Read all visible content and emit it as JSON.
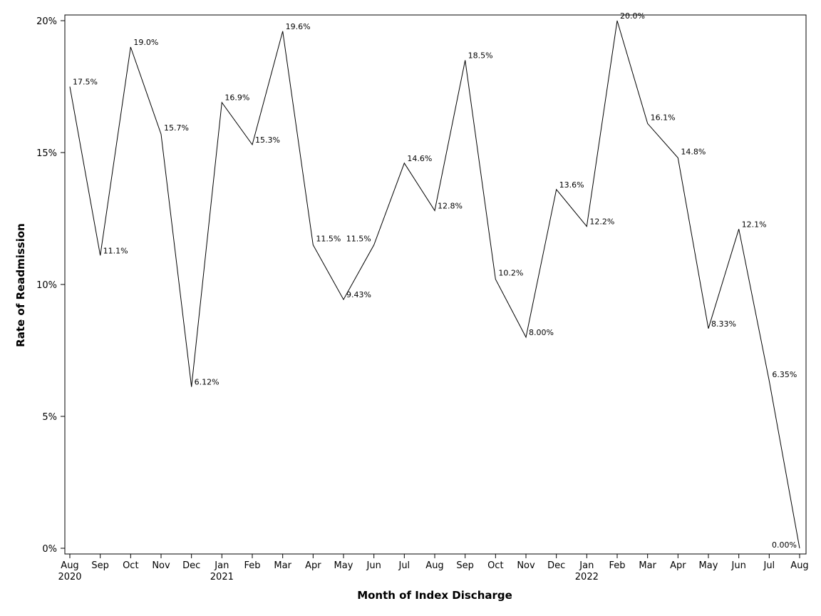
{
  "chart_data": {
    "type": "line",
    "title": "",
    "xlabel": "Month of Index Discharge",
    "ylabel": "Rate of Readmission",
    "ylim": [
      0,
      20
    ],
    "yticks": [
      "0%",
      "5%",
      "10%",
      "15%",
      "20%"
    ],
    "grid": false,
    "categories": [
      "Aug",
      "Sep",
      "Oct",
      "Nov",
      "Dec",
      "Jan",
      "Feb",
      "Mar",
      "Apr",
      "May",
      "Jun",
      "Jul",
      "Aug",
      "Sep",
      "Oct",
      "Nov",
      "Dec",
      "Jan",
      "Feb",
      "Mar",
      "Apr",
      "May",
      "Jun",
      "Jul",
      "Aug"
    ],
    "year_labels": [
      {
        "index": 0,
        "text": "2020"
      },
      {
        "index": 5,
        "text": "2021"
      },
      {
        "index": 17,
        "text": "2022"
      }
    ],
    "series": [
      {
        "name": "Rate of Readmission",
        "values": [
          17.5,
          11.1,
          19.0,
          15.7,
          6.12,
          16.9,
          15.3,
          19.6,
          11.5,
          9.43,
          11.5,
          14.6,
          12.8,
          18.5,
          10.2,
          8.0,
          13.6,
          12.2,
          20.0,
          16.1,
          14.8,
          8.33,
          12.1,
          6.35,
          0.0
        ],
        "labels": [
          "17.5%",
          "11.1%",
          "19.0%",
          "15.7%",
          "6.12%",
          "16.9%",
          "15.3%",
          "19.6%",
          "11.5%",
          "9.43%",
          "11.5%",
          "14.6%",
          "12.8%",
          "18.5%",
          "10.2%",
          "8.00%",
          "13.6%",
          "12.2%",
          "20.0%",
          "16.1%",
          "14.8%",
          "8.33%",
          "12.1%",
          "6.35%",
          "0.00%"
        ]
      }
    ]
  }
}
